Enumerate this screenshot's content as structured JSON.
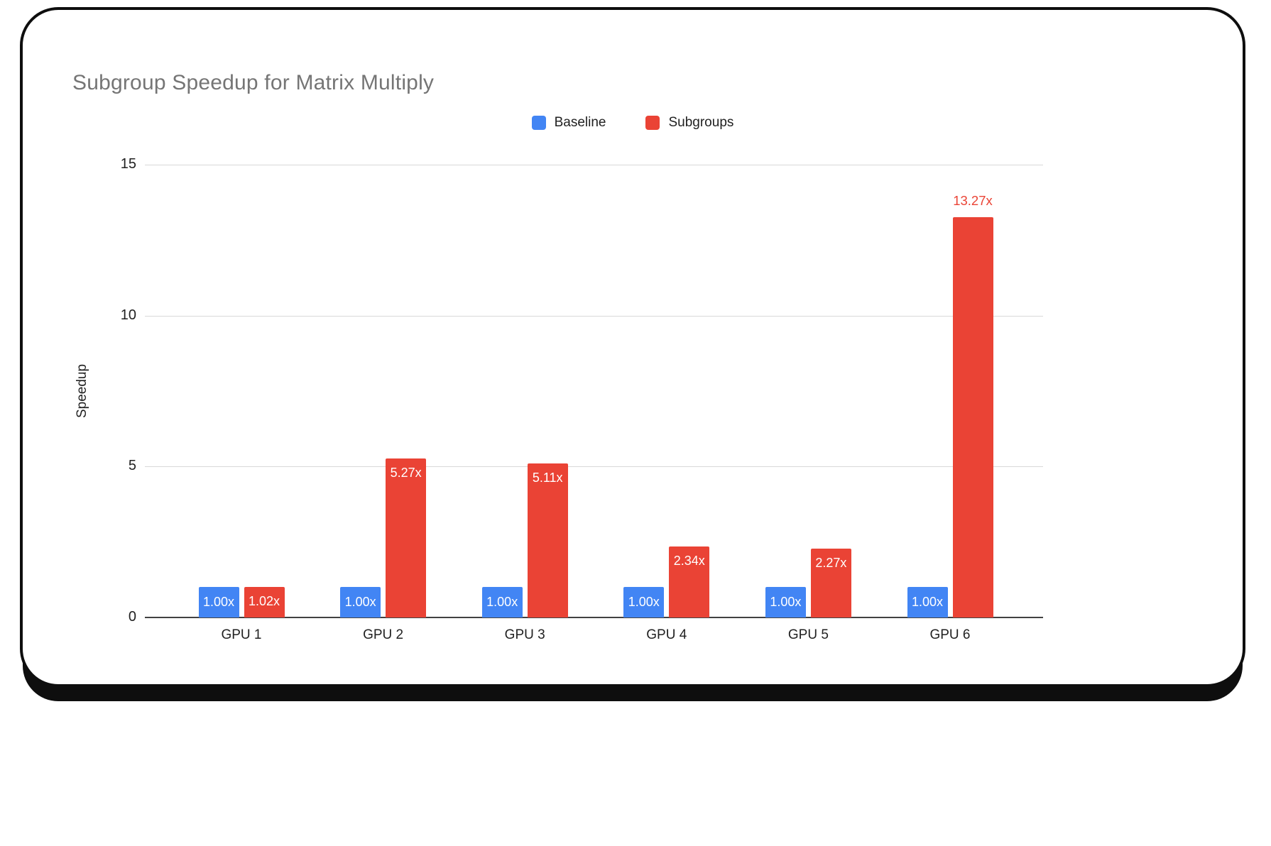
{
  "chart_data": {
    "type": "bar",
    "title": "Subgroup Speedup for Matrix Multiply",
    "ylabel": "Speedup",
    "ylim": [
      0,
      15
    ],
    "yticks": [
      0,
      5,
      10,
      15
    ],
    "ytick_labels": [
      "0",
      "5",
      "10",
      "15"
    ],
    "grid": true,
    "legend_position": "top-center",
    "categories": [
      "GPU 1",
      "GPU 2",
      "GPU 3",
      "GPU 4",
      "GPU 5",
      "GPU 6"
    ],
    "series": [
      {
        "name": "Baseline",
        "color": "#4285F4",
        "values": [
          1.0,
          1.0,
          1.0,
          1.0,
          1.0,
          1.0
        ],
        "labels": [
          "1.00x",
          "1.00x",
          "1.00x",
          "1.00x",
          "1.00x",
          "1.00x"
        ],
        "label_placement": [
          "inside",
          "inside",
          "inside",
          "inside",
          "inside",
          "inside"
        ]
      },
      {
        "name": "Subgroups",
        "color": "#EA4335",
        "values": [
          1.02,
          5.27,
          5.11,
          2.34,
          2.27,
          13.27
        ],
        "labels": [
          "1.02x",
          "5.27x",
          "5.11x",
          "2.34x",
          "2.27x",
          "13.27x"
        ],
        "label_placement": [
          "inside",
          "inside",
          "inside",
          "inside",
          "inside",
          "above"
        ]
      }
    ],
    "colors": {
      "title": "#757575",
      "axis_text": "#212121",
      "gridline": "#d9d9d9",
      "baseline_axis": "#424242",
      "data_label_inside": "#ffffff"
    }
  }
}
